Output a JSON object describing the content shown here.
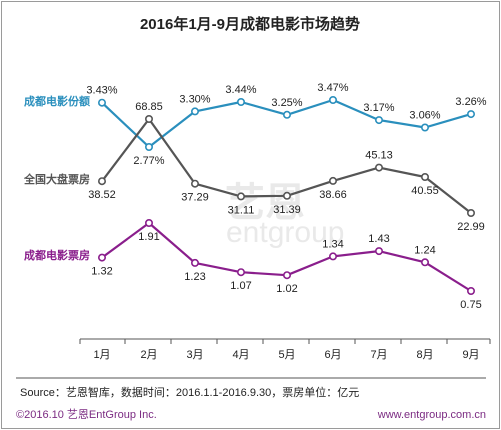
{
  "chart_data": {
    "type": "line",
    "title": "2016年1月-9月成都电影市场趋势",
    "categories": [
      "1月",
      "2月",
      "3月",
      "4月",
      "5月",
      "6月",
      "7月",
      "8月",
      "9月"
    ],
    "series": [
      {
        "name": "成都电影份额",
        "color": "#2a8fbd",
        "values": [
          3.43,
          2.77,
          3.3,
          3.44,
          3.25,
          3.47,
          3.17,
          3.06,
          3.26
        ],
        "labels": [
          "3.43%",
          "2.77%",
          "3.30%",
          "3.44%",
          "3.25%",
          "3.47%",
          "3.17%",
          "3.06%",
          "3.26%"
        ]
      },
      {
        "name": "全国大盘票房",
        "color": "#555555",
        "values": [
          38.52,
          68.85,
          37.29,
          31.11,
          31.39,
          38.66,
          45.13,
          40.55,
          22.99
        ],
        "labels": [
          "38.52",
          "68.85",
          "37.29",
          "31.11",
          "31.39",
          "38.66",
          "45.13",
          "40.55",
          "22.99"
        ]
      },
      {
        "name": "成都电影票房",
        "color": "#8a1e8c",
        "values": [
          1.32,
          1.91,
          1.23,
          1.07,
          1.02,
          1.34,
          1.43,
          1.24,
          0.75
        ],
        "labels": [
          "1.32",
          "1.91",
          "1.23",
          "1.07",
          "1.02",
          "1.34",
          "1.43",
          "1.24",
          "0.75"
        ]
      }
    ],
    "grid": false,
    "legend": "series names shown at left of each line"
  },
  "footer": {
    "source": "Source：艺恩智库，数据时间：2016.1.1-2016.9.30，票房单位：亿元",
    "copyright": "©2016.10 艺恩EntGroup Inc.",
    "website": "www.entgroup.com.cn"
  },
  "watermark": {
    "cn": "艺恩",
    "en": "entgroup"
  }
}
